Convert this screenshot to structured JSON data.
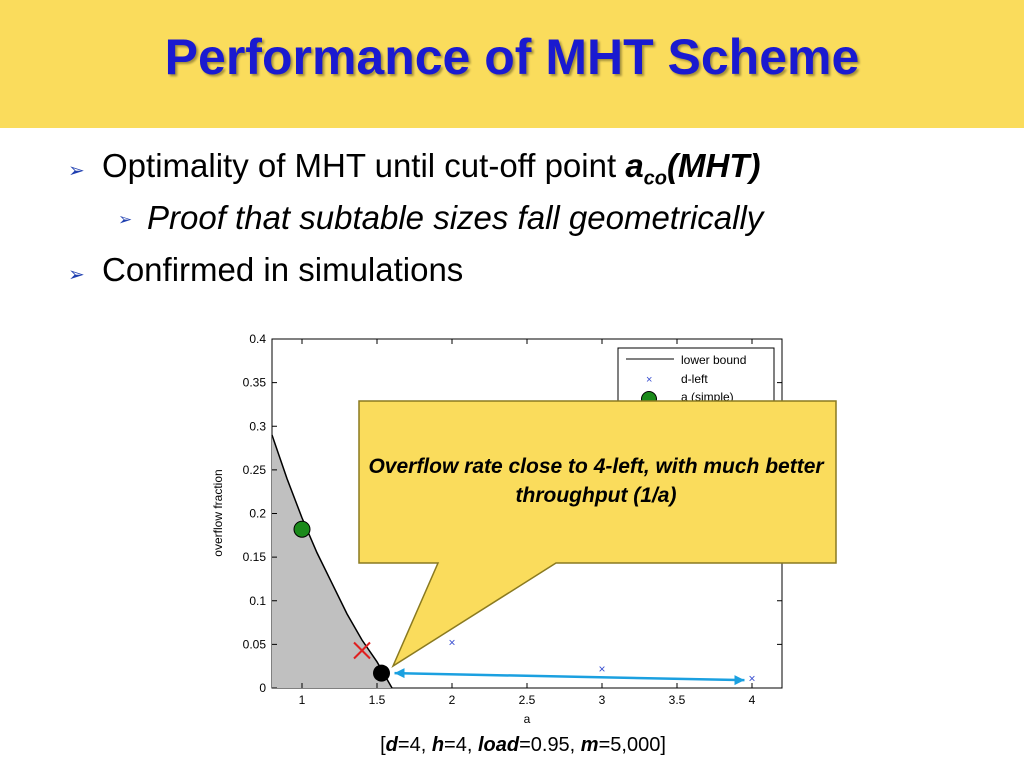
{
  "slide": {
    "title": "Performance of MHT Scheme",
    "colors": {
      "title_bg": "#fadc5c",
      "title_text": "#1a1ad0",
      "bullet_arrow": "#1f3fb0",
      "callout_bg": "#fadc5c"
    },
    "bullets": [
      {
        "text": "Optimality of MHT until cut-off point ",
        "emph_main": "a",
        "emph_sub": "co",
        "emph_tail": "(MHT)"
      },
      {
        "text": "Proof that subtable sizes fall geometrically"
      },
      {
        "text": "Confirmed in simulations"
      }
    ],
    "callout": "Overflow rate close to 4-left, with much better throughput (1/a)",
    "footer": {
      "open": "[",
      "d_label": "d",
      "d_val": "=4, ",
      "h_label": "h",
      "h_val": "=4, ",
      "load_label": "load",
      "load_val": "=0.95, ",
      "m_label": "m",
      "m_val": "=5,000",
      "close": "]"
    }
  },
  "chart_data": {
    "type": "line",
    "xlabel": "a",
    "ylabel": "overflow fraction",
    "xlim": [
      0.8,
      4.2
    ],
    "ylim": [
      0,
      0.4
    ],
    "xticks": [
      "1",
      "1.5",
      "2",
      "2.5",
      "3",
      "3.5",
      "4"
    ],
    "yticks": [
      "0",
      "0.05",
      "0.1",
      "0.15",
      "0.2",
      "0.25",
      "0.3",
      "0.35",
      "0.4"
    ],
    "grid": false,
    "legend_position": "top-right",
    "legend": [
      "lower bound",
      "d-left",
      "a   (simple)"
    ],
    "series": [
      {
        "name": "lower bound",
        "style": "line",
        "color": "#000000",
        "x": [
          0.8,
          0.9,
          1.0,
          1.1,
          1.2,
          1.3,
          1.4,
          1.5,
          1.55,
          1.6
        ],
        "y": [
          0.29,
          0.24,
          0.195,
          0.155,
          0.12,
          0.085,
          0.055,
          0.03,
          0.015,
          0.0
        ]
      },
      {
        "name": "d-left",
        "style": "x-marker",
        "color": "#3a4fd0",
        "x": [
          2,
          3,
          4
        ],
        "y": [
          0.052,
          0.022,
          0.011
        ]
      },
      {
        "name": "a   (simple)",
        "style": "circle",
        "color": "#1a8a1a",
        "x": [
          1.0
        ],
        "y": [
          0.182
        ]
      }
    ],
    "annotations": {
      "red_x": {
        "x": 1.4,
        "y": 0.043,
        "color": "#e02020"
      },
      "black_dot": {
        "x": 1.53,
        "y": 0.017
      },
      "arrow": {
        "from": [
          1.55,
          0.017
        ],
        "to": [
          3.95,
          0.009
        ],
        "color": "#1ba0e0"
      }
    }
  }
}
